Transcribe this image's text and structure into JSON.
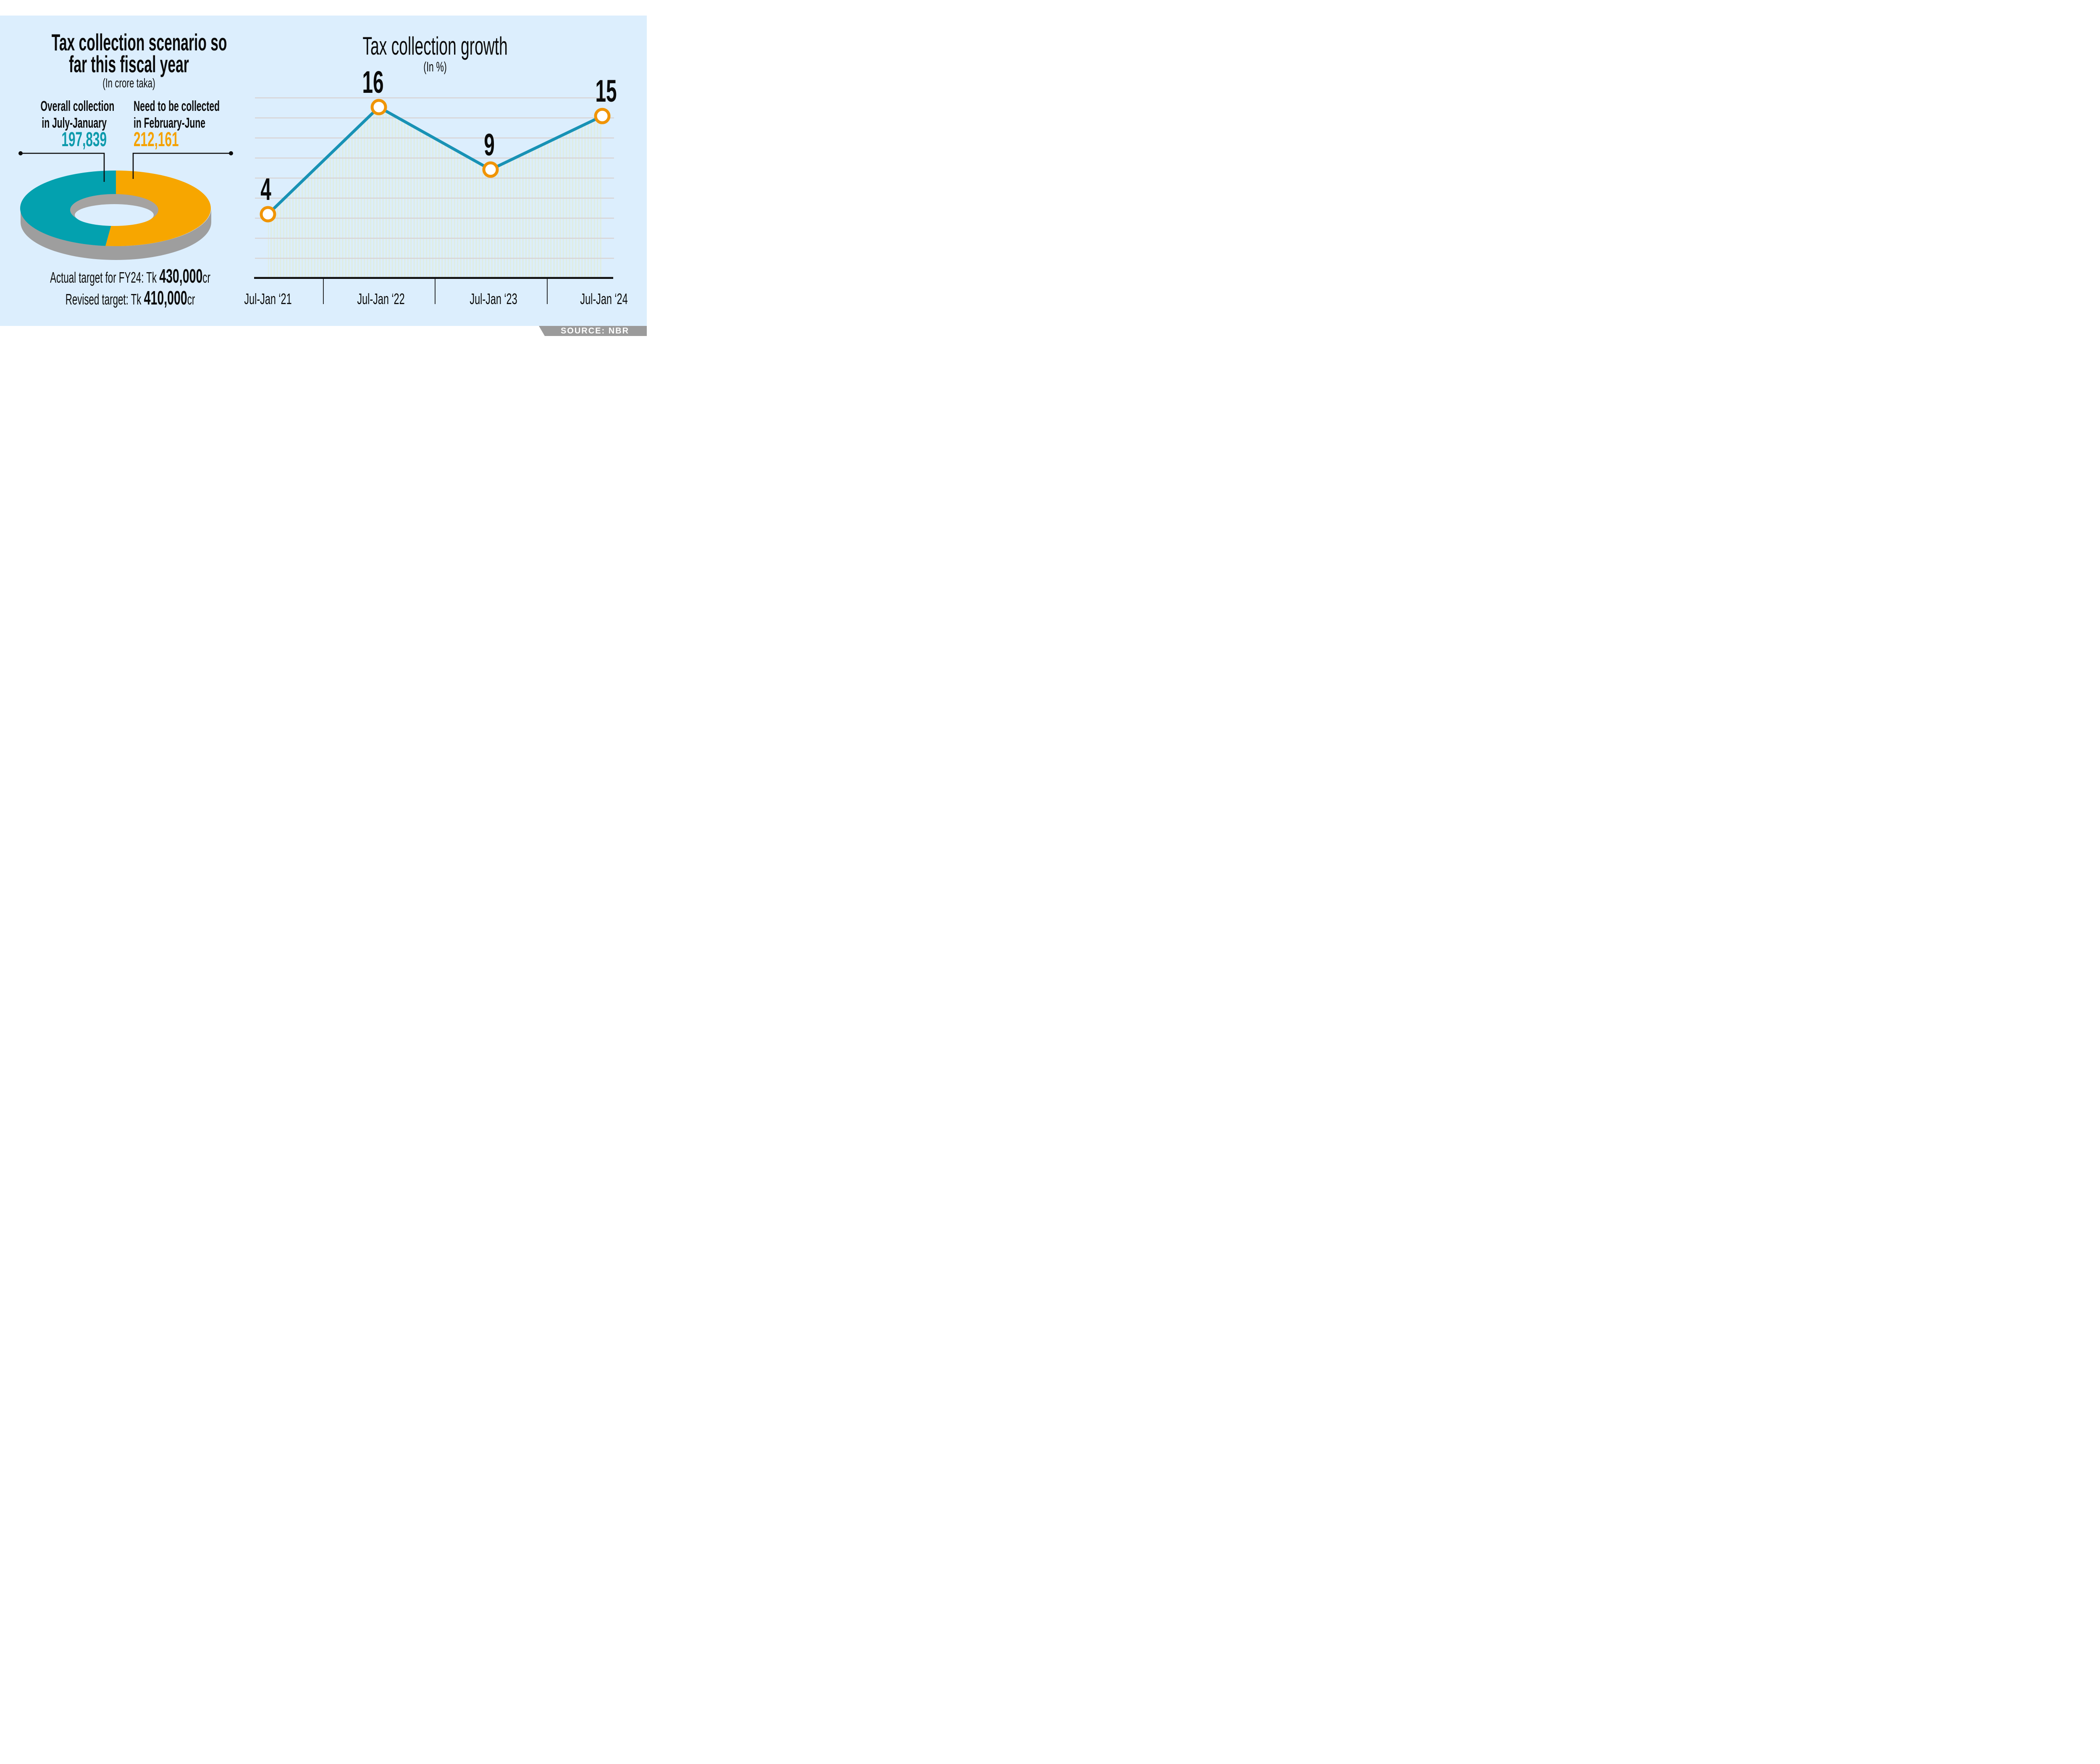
{
  "colors": {
    "page_bg": "#FFFFFF",
    "panel_bg": "#DCEEFD",
    "text": "#0B0B0B",
    "teal": "#03A1AF",
    "teal_number": "#0E9AAC",
    "orange": "#F7A600",
    "orange_number": "#F5A201",
    "donut_side_gray": "#9E9E9E",
    "ribbon_gray": "#9B9B9B",
    "gridline": "#D8D4D5",
    "stripe": "#DFEDE4",
    "line": "#1892B5",
    "marker_ring": "#F09405",
    "marker_fill": "#FFFFFF",
    "leader_black": "#0B0B0B"
  },
  "left_panel": {
    "title_line1": "Tax collection scenario so",
    "title_line2": "far this fiscal year",
    "subtitle": "(In crore taka)",
    "collected_label_line1": "Overall collection",
    "collected_label_line2": "in July-January",
    "collected_value": "197,839",
    "needed_label_line1": "Need to be collected",
    "needed_label_line2": "in February-June",
    "needed_value": "212,161",
    "actual_target_prefix": "Actual target for FY24: Tk ",
    "actual_target_value": "430,000",
    "actual_target_suffix": "cr",
    "revised_target_prefix": "Revised target: Tk ",
    "revised_target_value": "410,000",
    "revised_target_suffix": "cr"
  },
  "right_panel": {
    "title": "Tax collection growth",
    "subtitle": "(In %)"
  },
  "footer": {
    "source": "SOURCE: NBR"
  },
  "chart_data": [
    {
      "type": "pie",
      "variant": "3d-donut",
      "title": "Tax collection scenario so far this fiscal year",
      "subtitle": "(In crore taka)",
      "unit": "crore taka",
      "slices": [
        {
          "label": "Overall collection in July-January",
          "value": 197839,
          "color": "#03A1AF"
        },
        {
          "label": "Need to be collected in February-June",
          "value": 212161,
          "color": "#F7A600"
        }
      ],
      "total": 410000,
      "annotations": [
        "Actual target for FY24: Tk 430,000cr",
        "Revised target: Tk 410,000cr"
      ],
      "legend_position": "none"
    },
    {
      "type": "line",
      "title": "Tax collection growth",
      "subtitle": "(In %)",
      "categories": [
        "Jul-Jan ‘21",
        "Jul-Jan ‘22",
        "Jul-Jan ‘23",
        "Jul-Jan ‘24"
      ],
      "values": [
        4,
        16,
        9,
        15
      ],
      "xlabel": "",
      "ylabel": "",
      "ylim": [
        -3,
        18
      ],
      "grid": true,
      "gridline_count": 9,
      "line_color": "#1892B5",
      "marker": {
        "shape": "circle",
        "fill": "#FFFFFF",
        "ring_color": "#F09405"
      },
      "area_fill": "striped",
      "stripe_color": "#DFEDE4",
      "legend_position": "none"
    }
  ]
}
